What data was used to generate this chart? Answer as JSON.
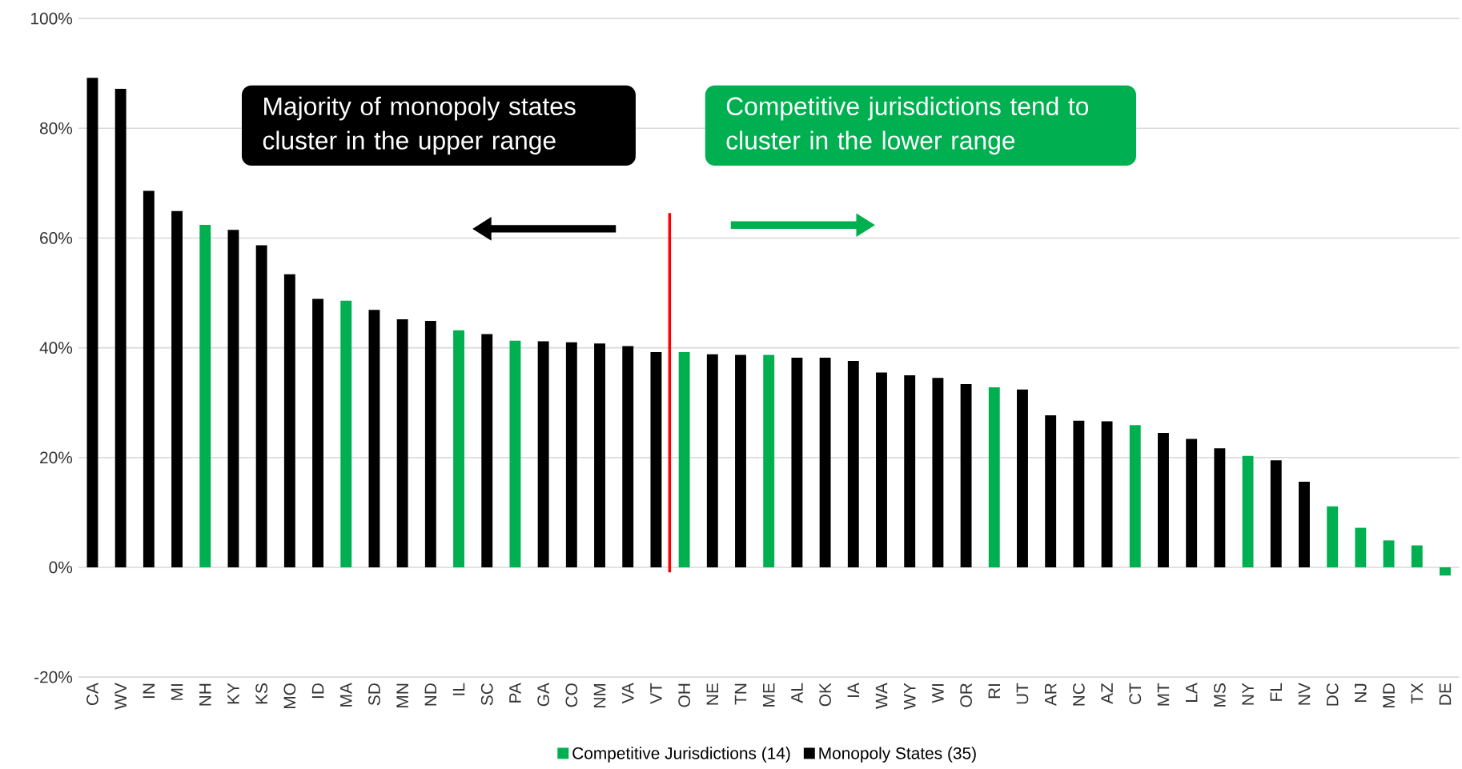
{
  "chart_data": {
    "type": "bar",
    "categories": [
      "CA",
      "WV",
      "IN",
      "MI",
      "NH",
      "KY",
      "KS",
      "MO",
      "ID",
      "MA",
      "SD",
      "MN",
      "ND",
      "IL",
      "SC",
      "PA",
      "GA",
      "CO",
      "NM",
      "VA",
      "VT",
      "OH",
      "NE",
      "TN",
      "ME",
      "AL",
      "OK",
      "IA",
      "WA",
      "WY",
      "WI",
      "OR",
      "RI",
      "UT",
      "AR",
      "NC",
      "AZ",
      "CT",
      "MT",
      "LA",
      "MS",
      "NY",
      "FL",
      "NV",
      "DC",
      "NJ",
      "MD",
      "TX",
      "DE"
    ],
    "series": [
      {
        "name": "Competitive Jurisdictions (14)",
        "color": "#00b050",
        "values": [
          null,
          null,
          null,
          null,
          62.4,
          null,
          null,
          null,
          null,
          48.6,
          null,
          null,
          null,
          43.2,
          null,
          41.3,
          null,
          null,
          null,
          null,
          null,
          39.2,
          null,
          null,
          38.7,
          null,
          null,
          null,
          null,
          null,
          null,
          null,
          32.8,
          null,
          null,
          null,
          null,
          25.9,
          null,
          null,
          null,
          20.3,
          null,
          null,
          11.1,
          7.2,
          4.9,
          4.0,
          -1.5
        ]
      },
      {
        "name": "Monopoly States (35)",
        "color": "#000000",
        "values": [
          89.2,
          87.2,
          68.6,
          64.9,
          null,
          61.5,
          58.7,
          53.4,
          48.9,
          null,
          46.9,
          45.2,
          44.9,
          null,
          42.5,
          null,
          41.2,
          41.0,
          40.8,
          40.3,
          39.2,
          null,
          38.8,
          38.7,
          null,
          38.2,
          38.2,
          37.6,
          35.5,
          35.0,
          34.5,
          33.4,
          null,
          32.4,
          27.7,
          26.7,
          26.6,
          null,
          24.5,
          23.4,
          21.7,
          null,
          19.5,
          15.6,
          null,
          null,
          null,
          null,
          null
        ]
      }
    ],
    "ylim": [
      -20,
      100
    ],
    "yticks": [
      {
        "value": -20,
        "label": "-20%"
      },
      {
        "value": 0,
        "label": "0%"
      },
      {
        "value": 20,
        "label": "20%"
      },
      {
        "value": 40,
        "label": "40%"
      },
      {
        "value": 60,
        "label": "60%"
      },
      {
        "value": 80,
        "label": "80%"
      },
      {
        "value": 100,
        "label": "100%"
      }
    ],
    "grid": "y",
    "legend": "bottom",
    "annotations": [
      "Majority of monopoly states cluster in the upper range",
      "Competitive jurisdictions tend to cluster in the lower range"
    ]
  }
}
